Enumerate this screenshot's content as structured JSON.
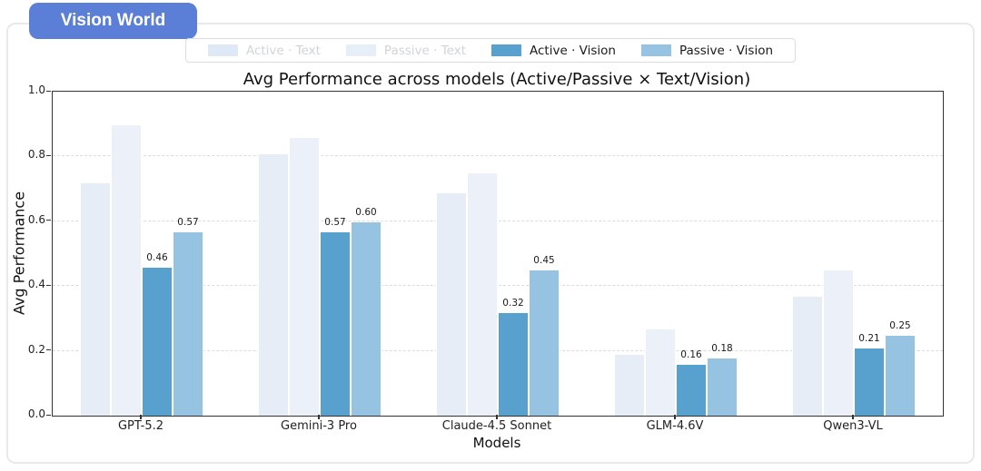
{
  "badge": {
    "label": "Vision World"
  },
  "colors": {
    "badge_bg": "#5b7ed7",
    "card_border": "#e9e9e9",
    "axis": "#333333",
    "grid": "#dcdcdc",
    "muted_legend_text": "#d0d5da",
    "active_text": "#e7edf6",
    "passive_text": "#ecf1f9",
    "active_vision": "#58a1cf",
    "passive_vision": "#95c3e1"
  },
  "legend": {
    "items": [
      {
        "label": "Active · Text",
        "swatch": "#dfe9f5",
        "muted": true
      },
      {
        "label": "Passive · Text",
        "swatch": "#e6eef8",
        "muted": true
      },
      {
        "label": "Active · Vision",
        "swatch": "#58a1cf",
        "muted": false
      },
      {
        "label": "Passive · Vision",
        "swatch": "#95c3e1",
        "muted": false
      }
    ]
  },
  "chart_data": {
    "type": "bar",
    "title": "Avg Performance across models (Active/Passive × Text/Vision)",
    "xlabel": "Models",
    "ylabel": "Avg Performance",
    "ylim": [
      0,
      1.0
    ],
    "yticks": [
      0.0,
      0.2,
      0.4,
      0.6,
      0.8,
      1.0
    ],
    "grid": "horizontal dashed",
    "legend_position": "top center, outside plot",
    "categories": [
      "GPT-5.2",
      "Gemini-3 Pro",
      "Claude-4.5 Sonnet",
      "GLM-4.6V",
      "Qwen3-VL"
    ],
    "series": [
      {
        "name": "Active · Text",
        "color": "#e7edf6",
        "show_value_labels": false,
        "values": [
          0.72,
          0.81,
          0.69,
          0.19,
          0.37
        ]
      },
      {
        "name": "Passive · Text",
        "color": "#ecf1f9",
        "show_value_labels": false,
        "values": [
          0.9,
          0.86,
          0.75,
          0.27,
          0.45
        ]
      },
      {
        "name": "Active · Vision",
        "color": "#58a1cf",
        "show_value_labels": true,
        "values": [
          0.46,
          0.57,
          0.32,
          0.16,
          0.21
        ]
      },
      {
        "name": "Passive · Vision",
        "color": "#95c3e1",
        "show_value_labels": true,
        "values": [
          0.57,
          0.6,
          0.45,
          0.18,
          0.25
        ]
      }
    ]
  }
}
